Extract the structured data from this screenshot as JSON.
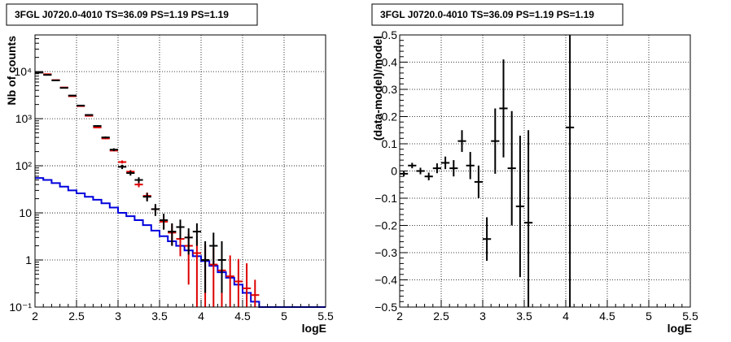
{
  "chart_data": [
    {
      "type": "scatter",
      "title": "3FGL J0720.0-4010 TS=36.09 PS=1.19 PS=1.19",
      "xlabel": "logE",
      "ylabel": "Nb of counts",
      "xlim": [
        2,
        5.5
      ],
      "ylim": [
        0.1,
        60000
      ],
      "log_y": true,
      "grid": true,
      "x_ticks": [
        "2",
        "2.5",
        "3",
        "3.5",
        "4",
        "4.5",
        "5",
        "5.5"
      ],
      "y_ticks": [
        "10⁻¹",
        "1",
        "10",
        "10²",
        "10³",
        "10⁴"
      ],
      "colors": {
        "data": "#000000",
        "model": "#dd0000",
        "source": "#0000dd"
      },
      "series": [
        {
          "type": "errorbar",
          "color": "#000000",
          "x": [
            2.05,
            2.15,
            2.25,
            2.35,
            2.45,
            2.55,
            2.65,
            2.75,
            2.85,
            2.95,
            3.05,
            3.15,
            3.25,
            3.35,
            3.45,
            3.55,
            3.65,
            3.75,
            3.85,
            3.95,
            4.05,
            4.15,
            4.25
          ],
          "y": [
            9500,
            8500,
            6500,
            4500,
            3100,
            1900,
            1200,
            700,
            400,
            220,
            95,
            70,
            50,
            22,
            12,
            7,
            4,
            5,
            3,
            4,
            1,
            2,
            1
          ],
          "yerr_lo": [
            100,
            90,
            80,
            65,
            55,
            44,
            35,
            26,
            20,
            15,
            10,
            8,
            7,
            4.5,
            3.4,
            2.6,
            2,
            2.2,
            1.7,
            2,
            0.8,
            1.2,
            0.8
          ],
          "yerr_hi": [
            100,
            90,
            80,
            65,
            55,
            44,
            35,
            26,
            20,
            15,
            10,
            8,
            7,
            4.5,
            3.4,
            2.6,
            2,
            2.2,
            1.7,
            2,
            1.5,
            1.8,
            1.5
          ]
        },
        {
          "type": "errorbar",
          "color": "#dd0000",
          "x": [
            2.05,
            2.15,
            2.25,
            2.35,
            2.45,
            2.55,
            2.65,
            2.75,
            2.85,
            2.95,
            3.05,
            3.15,
            3.25,
            3.35,
            3.45,
            3.55,
            3.65,
            3.75,
            3.85,
            3.95,
            4.05,
            4.15,
            4.25,
            4.35,
            4.45,
            4.55,
            4.65
          ],
          "y": [
            9700,
            8800,
            6600,
            4600,
            3000,
            1850,
            1150,
            650,
            380,
            210,
            120,
            75,
            40,
            23,
            12,
            6.5,
            3.8,
            2.8,
            2.0,
            1.4,
            1.0,
            0.8,
            0.6,
            0.45,
            0.35,
            0.25,
            0.18
          ],
          "yerr_lo": [
            0,
            0,
            0,
            0,
            0,
            0,
            0,
            0,
            0,
            0,
            8,
            5,
            5,
            4,
            2.5,
            2,
            1.8,
            1.6,
            1.7,
            1.3,
            0.9,
            0.75,
            0.55,
            0.35,
            0.25,
            0.15,
            0.08
          ],
          "yerr_hi": [
            0,
            0,
            0,
            0,
            0,
            0,
            0,
            0,
            0,
            0,
            10,
            6,
            6,
            4,
            2.5,
            2,
            2,
            1.8,
            1.6,
            1.3,
            1.1,
            1.0,
            0.9,
            0.8,
            0.7,
            0.6,
            0.2
          ]
        },
        {
          "type": "step",
          "color": "#0000dd",
          "x_edges": [
            2.0,
            2.1,
            2.2,
            2.3,
            2.4,
            2.5,
            2.6,
            2.7,
            2.8,
            2.9,
            3.0,
            3.1,
            3.2,
            3.3,
            3.4,
            3.5,
            3.6,
            3.7,
            3.8,
            3.9,
            4.0,
            4.1,
            4.2,
            4.3,
            4.4,
            4.5,
            4.6,
            4.7,
            5.5
          ],
          "y": [
            55,
            50,
            43,
            36,
            30,
            26,
            22,
            19,
            16,
            13,
            10,
            8.5,
            7,
            5.5,
            4.2,
            3.2,
            2.5,
            2.0,
            1.6,
            1.2,
            0.95,
            0.75,
            0.55,
            0.42,
            0.3,
            0.2,
            0.13,
            0.1
          ]
        }
      ]
    },
    {
      "type": "scatter",
      "title": "3FGL J0720.0-4010 TS=36.09 PS=1.19 PS=1.19",
      "xlabel": "logE",
      "ylabel": "(data-model)/model",
      "xlim": [
        2,
        5.5
      ],
      "ylim": [
        -0.5,
        0.5
      ],
      "grid": true,
      "x_ticks": [
        "2",
        "2.5",
        "3",
        "3.5",
        "4",
        "4.5",
        "5",
        "5.5"
      ],
      "y_ticks": [
        "−0.5",
        "−0.4",
        "−0.3",
        "−0.2",
        "−0.1",
        "0",
        "0.1",
        "0.2",
        "0.3",
        "0.4",
        "0.5"
      ],
      "series": [
        {
          "type": "errorbar",
          "color": "#000000",
          "x": [
            2.05,
            2.15,
            2.25,
            2.35,
            2.45,
            2.55,
            2.65,
            2.75,
            2.85,
            2.95,
            3.05,
            3.15,
            3.25,
            3.35,
            3.45,
            3.55,
            4.05
          ],
          "y": [
            -0.01,
            0.02,
            0.0,
            -0.02,
            0.01,
            0.03,
            0.01,
            0.11,
            0.02,
            -0.04,
            -0.25,
            0.11,
            0.23,
            0.01,
            -0.13,
            -0.19,
            0.16
          ],
          "yerr": [
            0.01,
            0.01,
            0.012,
            0.014,
            0.018,
            0.023,
            0.03,
            0.04,
            0.05,
            0.06,
            0.08,
            0.12,
            0.18,
            0.21,
            0.26,
            0.34,
            0.9
          ]
        }
      ]
    }
  ]
}
